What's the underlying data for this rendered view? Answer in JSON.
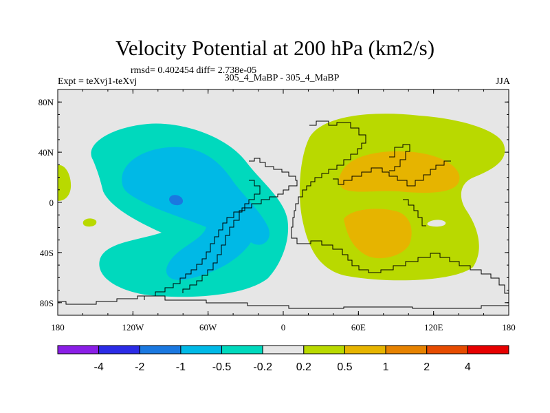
{
  "header": {
    "title": "Velocity Potential at 200 hPa (km2/s)",
    "stats": "rmsd= 0.402454 diff= 2.738e-05",
    "left_label": "Expt = teXvj1-teXvj",
    "center_label": "305_4_MaBP - 305_4_MaBP",
    "right_label": "JJA"
  },
  "chart_data": {
    "type": "heatmap",
    "title": "Velocity Potential at 200 hPa (km2/s)",
    "x_axis": {
      "range": [
        -180,
        180
      ],
      "ticks": [
        {
          "value": -180,
          "label": "180"
        },
        {
          "value": -120,
          "label": "120W"
        },
        {
          "value": -60,
          "label": "60W"
        },
        {
          "value": 0,
          "label": "0"
        },
        {
          "value": 60,
          "label": "60E"
        },
        {
          "value": 120,
          "label": "120E"
        },
        {
          "value": 180,
          "label": "180"
        }
      ]
    },
    "y_axis": {
      "range": [
        -90,
        90
      ],
      "ticks": [
        {
          "value": 80,
          "label": "80N"
        },
        {
          "value": 40,
          "label": "40N"
        },
        {
          "value": 0,
          "label": "0"
        },
        {
          "value": -40,
          "label": "40S"
        },
        {
          "value": -80,
          "label": "80S"
        }
      ]
    },
    "colorbar": {
      "boundary_labels": [
        "-4",
        "-2",
        "-1",
        "-0.5",
        "-0.2",
        "0.2",
        "0.5",
        "1",
        "2",
        "4"
      ],
      "colors": [
        "#8a1ee6",
        "#2b2be6",
        "#1a78e0",
        "#00b9e6",
        "#00d9bd",
        "#e6e6e6",
        "#b9d900",
        "#e6b400",
        "#e68200",
        "#e64b00",
        "#e60000"
      ]
    },
    "regions": [
      {
        "name": "pacific-americas-negative",
        "level": -0.2,
        "lon_range": [
          -150,
          -10
        ],
        "lat_range": [
          -75,
          65
        ]
      },
      {
        "name": "pacific-americas-core",
        "level": -0.5,
        "lon_range": [
          -130,
          -25
        ],
        "lat_range": [
          -45,
          45
        ]
      },
      {
        "name": "pacific-minimum",
        "level": -1,
        "lon": -87,
        "lat": 2
      },
      {
        "name": "afro-asian-positive",
        "level": 0.2,
        "lon_range": [
          15,
          170
        ],
        "lat_range": [
          -60,
          75
        ]
      },
      {
        "name": "asian-maximum",
        "level": 0.5,
        "lon_range": [
          50,
          140
        ],
        "lat_range": [
          10,
          40
        ]
      },
      {
        "name": "indian-ocean-maximum",
        "level": 0.5,
        "lon_range": [
          50,
          100
        ],
        "lat_range": [
          -40,
          0
        ]
      }
    ]
  }
}
